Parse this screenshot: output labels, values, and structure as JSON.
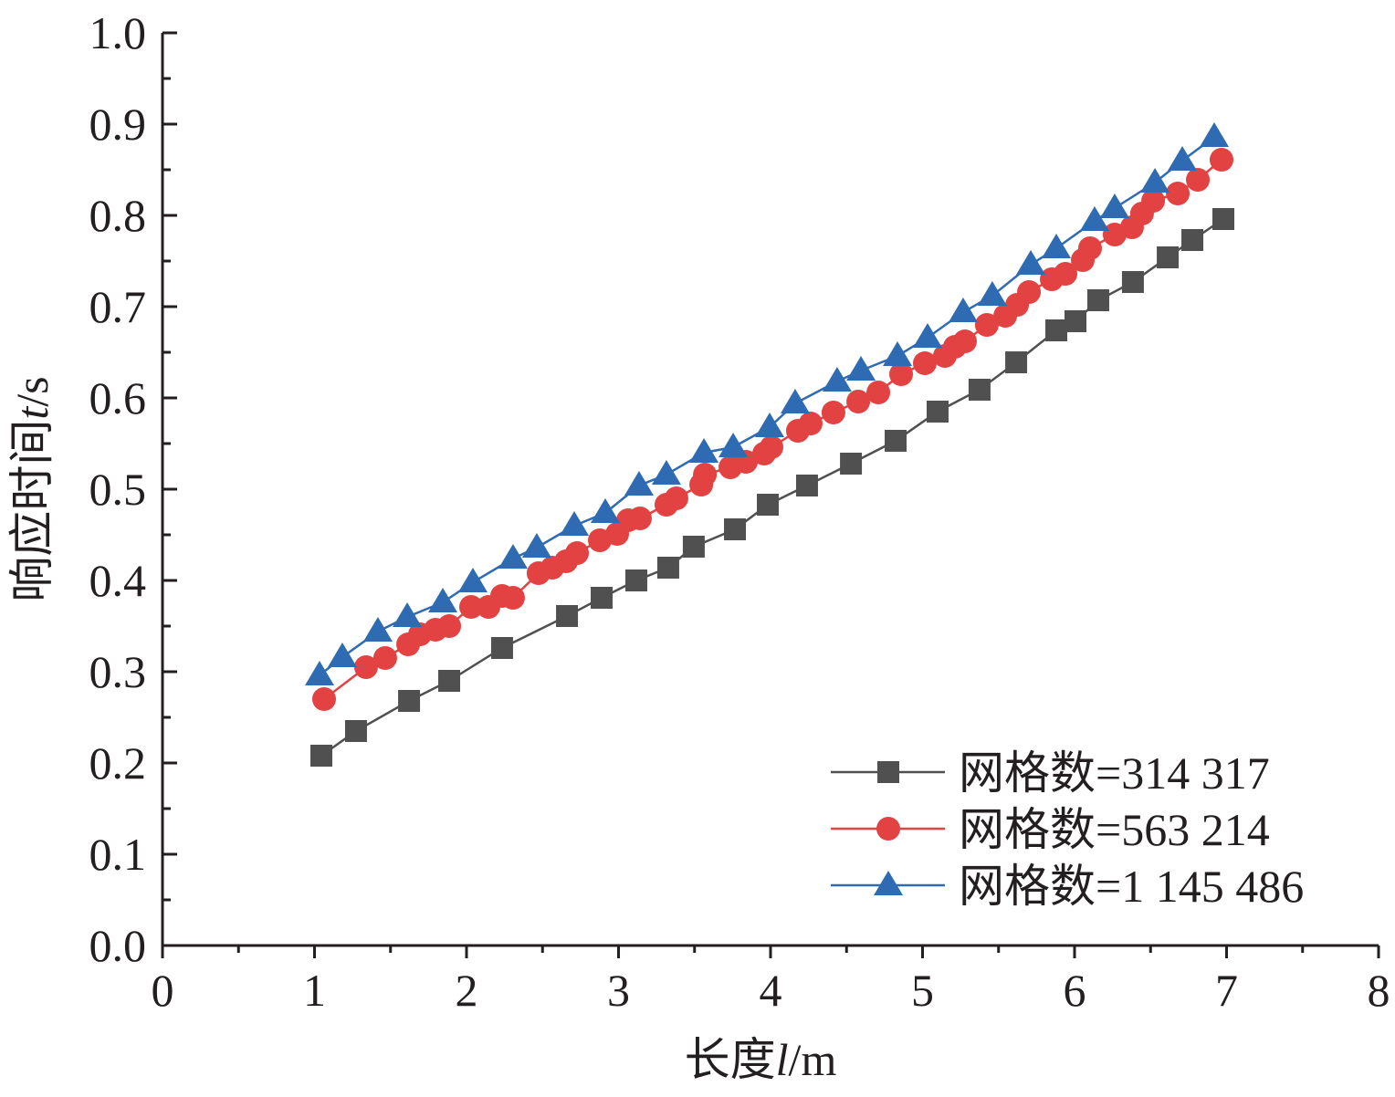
{
  "chart_data": {
    "type": "line",
    "title": "",
    "xlabel": {
      "prefix": "长度",
      "var": "l",
      "unit": "/m"
    },
    "ylabel": {
      "prefix": "响应时间",
      "var": "t",
      "unit": "/s"
    },
    "xlim": [
      0,
      8
    ],
    "ylim": [
      0,
      1.0
    ],
    "x_ticks": [
      "0",
      "1",
      "2",
      "3",
      "4",
      "5",
      "6",
      "7",
      "8"
    ],
    "y_ticks": [
      "0.0",
      "0.1",
      "0.2",
      "0.3",
      "0.4",
      "0.5",
      "0.6",
      "0.7",
      "0.8",
      "0.9",
      "1.0"
    ],
    "grid": false,
    "legend_position": "bottom-right",
    "series": [
      {
        "name": "网格数=314 317",
        "color": "#505050",
        "marker": "square",
        "x": [
          1.045,
          1.273,
          1.622,
          1.886,
          2.234,
          2.661,
          2.889,
          3.117,
          3.327,
          3.495,
          3.766,
          3.982,
          4.24,
          4.529,
          4.823,
          5.099,
          5.375,
          5.616,
          5.88,
          6.006,
          6.156,
          6.384,
          6.613,
          6.775,
          6.979
        ],
        "y": [
          0.208,
          0.235,
          0.268,
          0.29,
          0.326,
          0.361,
          0.381,
          0.4,
          0.414,
          0.437,
          0.456,
          0.483,
          0.504,
          0.528,
          0.553,
          0.585,
          0.609,
          0.639,
          0.674,
          0.684,
          0.707,
          0.727,
          0.754,
          0.773,
          0.796
        ]
      },
      {
        "name": "网格数=563 214",
        "color": "#e34242",
        "marker": "circle",
        "x": [
          1.063,
          1.339,
          1.465,
          1.616,
          1.694,
          1.796,
          1.886,
          2.03,
          2.144,
          2.234,
          2.306,
          2.474,
          2.565,
          2.655,
          2.727,
          2.877,
          2.991,
          3.063,
          3.141,
          3.315,
          3.381,
          3.544,
          3.568,
          3.736,
          3.838,
          3.958,
          4.006,
          4.18,
          4.264,
          4.414,
          4.577,
          4.709,
          4.859,
          5.015,
          5.147,
          5.213,
          5.279,
          5.423,
          5.544,
          5.622,
          5.7,
          5.85,
          5.94,
          6.054,
          6.102,
          6.264,
          6.378,
          6.444,
          6.517,
          6.679,
          6.811,
          6.967
        ],
        "y": [
          0.27,
          0.305,
          0.315,
          0.33,
          0.341,
          0.346,
          0.35,
          0.371,
          0.371,
          0.383,
          0.381,
          0.408,
          0.414,
          0.421,
          0.43,
          0.444,
          0.451,
          0.466,
          0.468,
          0.483,
          0.49,
          0.505,
          0.516,
          0.524,
          0.53,
          0.539,
          0.546,
          0.564,
          0.572,
          0.584,
          0.596,
          0.606,
          0.626,
          0.638,
          0.646,
          0.656,
          0.662,
          0.68,
          0.69,
          0.702,
          0.716,
          0.73,
          0.736,
          0.751,
          0.764,
          0.779,
          0.787,
          0.802,
          0.816,
          0.824,
          0.839,
          0.861
        ]
      },
      {
        "name": "网格数=1 145 486",
        "color": "#2e6bb3",
        "marker": "triangle",
        "x": [
          1.033,
          1.183,
          1.417,
          1.61,
          1.844,
          2.042,
          2.306,
          2.462,
          2.709,
          2.913,
          3.135,
          3.315,
          3.562,
          3.754,
          3.994,
          4.162,
          4.438,
          4.595,
          4.835,
          5.033,
          5.267,
          5.459,
          5.712,
          5.88,
          6.132,
          6.264,
          6.529,
          6.709,
          6.919
        ],
        "y": [
          0.296,
          0.316,
          0.344,
          0.36,
          0.376,
          0.398,
          0.424,
          0.436,
          0.46,
          0.474,
          0.504,
          0.516,
          0.54,
          0.546,
          0.568,
          0.594,
          0.618,
          0.63,
          0.646,
          0.666,
          0.694,
          0.712,
          0.746,
          0.764,
          0.794,
          0.808,
          0.836,
          0.86,
          0.886
        ]
      }
    ]
  }
}
